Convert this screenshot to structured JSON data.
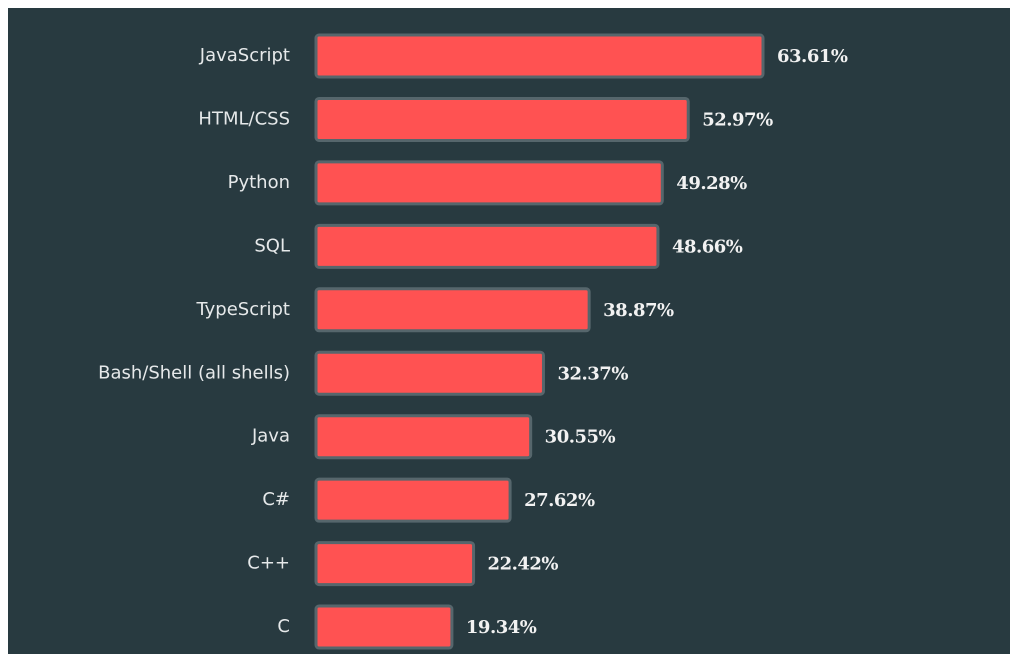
{
  "chart_data": {
    "type": "bar",
    "orientation": "horizontal",
    "categories": [
      "JavaScript",
      "HTML/CSS",
      "Python",
      "SQL",
      "TypeScript",
      "Bash/Shell (all shells)",
      "Java",
      "C#",
      "C++",
      "C"
    ],
    "values": [
      63.61,
      52.97,
      49.28,
      48.66,
      38.87,
      32.37,
      30.55,
      27.62,
      22.42,
      19.34
    ],
    "value_labels": [
      "63.61%",
      "52.97%",
      "49.28%",
      "48.66%",
      "38.87%",
      "32.37%",
      "30.55%",
      "27.62%",
      "22.42%",
      "19.34%"
    ],
    "color": "#ff5252"
  }
}
